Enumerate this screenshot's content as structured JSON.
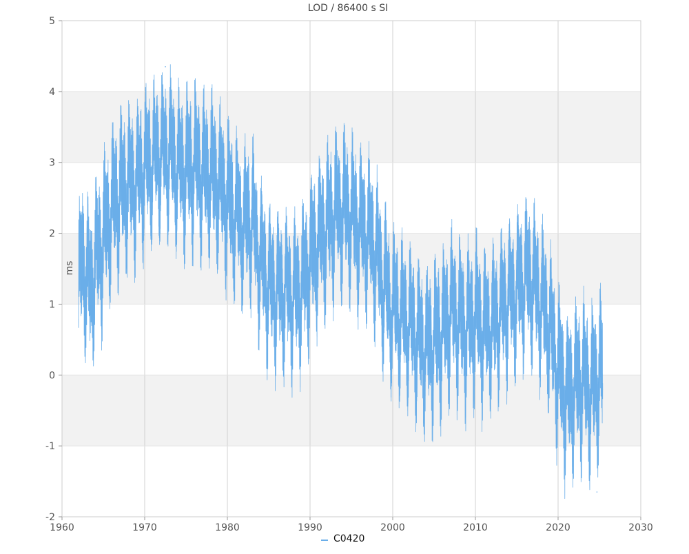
{
  "chart_data": {
    "type": "line",
    "title": "LOD / 86400 s SI",
    "xlabel": "",
    "ylabel": "ms",
    "xlim": [
      1960,
      2030
    ],
    "ylim": [
      -2,
      5
    ],
    "xticks": [
      "1960",
      "1970",
      "1980",
      "1990",
      "2000",
      "2010",
      "2020",
      "2030"
    ],
    "yticks": [
      "-2",
      "-1",
      "0",
      "1",
      "2",
      "3",
      "4",
      "5"
    ],
    "grid": true,
    "alternating_bands": true,
    "legend_position": "bottom-center",
    "series": [
      {
        "name": "C0420",
        "color": "#6aaee9",
        "x_start": 1962.0,
        "x_end": 2025.4,
        "trend": [
          [
            1962.0,
            1.2
          ],
          [
            1962.5,
            1.7
          ],
          [
            1963.0,
            1.4
          ],
          [
            1963.5,
            1.2
          ],
          [
            1964.0,
            1.6
          ],
          [
            1965.0,
            1.9
          ],
          [
            1966.0,
            2.3
          ],
          [
            1967.0,
            2.5
          ],
          [
            1968.0,
            2.6
          ],
          [
            1969.0,
            2.6
          ],
          [
            1970.0,
            2.8
          ],
          [
            1971.0,
            2.9
          ],
          [
            1972.0,
            3.0
          ],
          [
            1973.0,
            3.0
          ],
          [
            1974.0,
            2.8
          ],
          [
            1975.0,
            2.8
          ],
          [
            1976.0,
            2.9
          ],
          [
            1977.0,
            2.8
          ],
          [
            1978.0,
            2.8
          ],
          [
            1979.0,
            2.7
          ],
          [
            1980.0,
            2.5
          ],
          [
            1981.0,
            2.3
          ],
          [
            1982.0,
            2.2
          ],
          [
            1983.0,
            2.3
          ],
          [
            1984.0,
            1.7
          ],
          [
            1985.0,
            1.4
          ],
          [
            1986.0,
            1.3
          ],
          [
            1987.0,
            1.3
          ],
          [
            1988.0,
            1.2
          ],
          [
            1989.0,
            1.3
          ],
          [
            1990.0,
            1.7
          ],
          [
            1991.0,
            1.9
          ],
          [
            1992.0,
            2.1
          ],
          [
            1993.0,
            2.3
          ],
          [
            1994.0,
            2.3
          ],
          [
            1995.0,
            2.2
          ],
          [
            1996.0,
            2.0
          ],
          [
            1997.0,
            1.9
          ],
          [
            1998.0,
            1.6
          ],
          [
            1999.0,
            1.1
          ],
          [
            2000.0,
            0.8
          ],
          [
            2001.0,
            0.7
          ],
          [
            2002.0,
            0.6
          ],
          [
            2003.0,
            0.4
          ],
          [
            2004.0,
            0.3
          ],
          [
            2005.0,
            0.4
          ],
          [
            2006.0,
            0.6
          ],
          [
            2007.0,
            0.9
          ],
          [
            2008.0,
            0.8
          ],
          [
            2009.0,
            0.7
          ],
          [
            2010.0,
            0.9
          ],
          [
            2011.0,
            0.7
          ],
          [
            2012.0,
            0.8
          ],
          [
            2013.0,
            1.0
          ],
          [
            2014.0,
            1.2
          ],
          [
            2015.0,
            1.3
          ],
          [
            2016.0,
            1.5
          ],
          [
            2017.0,
            1.4
          ],
          [
            2018.0,
            1.1
          ],
          [
            2019.0,
            0.7
          ],
          [
            2020.0,
            0.1
          ],
          [
            2021.0,
            -0.3
          ],
          [
            2022.0,
            -0.2
          ],
          [
            2023.0,
            -0.1
          ],
          [
            2024.0,
            -0.3
          ],
          [
            2025.0,
            -0.1
          ],
          [
            2025.4,
            -0.1
          ]
        ],
        "approx_max": [
          1972.5,
          4.35
        ],
        "approx_min": [
          2024.7,
          -1.65
        ],
        "seasonal_amplitude": 0.75
      }
    ]
  }
}
